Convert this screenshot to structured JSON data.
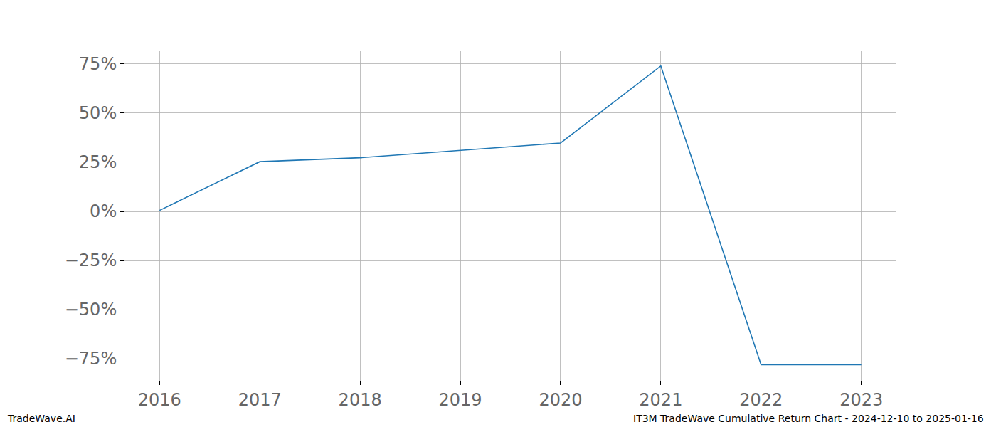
{
  "chart_data": {
    "type": "line",
    "x": [
      2016,
      2017,
      2018,
      2019,
      2020,
      2021,
      2022,
      2023
    ],
    "values": [
      0.5,
      25.3,
      27.3,
      31.0,
      34.8,
      74.0,
      -78.0,
      -78.0
    ],
    "color": "#1f77b4",
    "xlim": [
      2015.65,
      2023.35
    ],
    "xticks": [
      2016,
      2017,
      2018,
      2019,
      2020,
      2021,
      2022,
      2023
    ],
    "ylim": [
      -86.2,
      81.5
    ],
    "yticks": [
      {
        "value": -75,
        "label": "−75%"
      },
      {
        "value": -50,
        "label": "−50%"
      },
      {
        "value": -25,
        "label": "−25%"
      },
      {
        "value": 0,
        "label": "0%"
      },
      {
        "value": 25,
        "label": "25%"
      },
      {
        "value": 50,
        "label": "50%"
      },
      {
        "value": 75,
        "label": "75%"
      }
    ],
    "grid": true,
    "annotations": [
      {
        "text": "TradeWave.AI"
      },
      {
        "text": "IT3M TradeWave Cumulative Return Chart - 2024-12-10 to 2025-01-16"
      }
    ]
  }
}
